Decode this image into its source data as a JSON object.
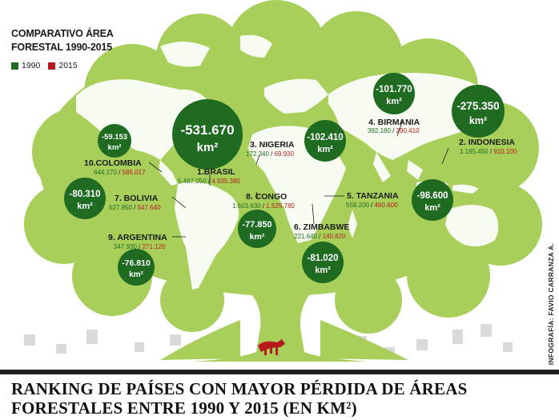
{
  "legend": {
    "title_line1": "COMPARATIVO ÁREA",
    "title_line2": "FORESTAL 1990-2015",
    "year_a": "1990",
    "year_b": "2015",
    "color_a": "#1e6b22",
    "color_b": "#b51b1b"
  },
  "colors": {
    "tree": "#a8cf5a",
    "tree_dark": "#8fbf45",
    "map": "#ffffff",
    "circle": "#1f6b22",
    "stumps": "#d8d8d8"
  },
  "countries": [
    {
      "rank_name": "1.BRASIL",
      "v1990": "5.467.050",
      "v2015": "4.935.380",
      "loss_line1": "-531.670",
      "loss_line2": "km²"
    },
    {
      "rank_name": "2. INDONESIA",
      "v1990": "1.185.450",
      "v2015": "910.100",
      "loss_line1": "-275.350",
      "loss_line2": "km²"
    },
    {
      "rank_name": "3. NIGERIA",
      "v1990": "172.340",
      "v2015": "69.930",
      "loss_line1": "-102.410",
      "loss_line2": "km²"
    },
    {
      "rank_name": "4. BIRMANIA",
      "v1990": "392.180",
      "v2015": "290.410",
      "loss_line1": "-101.770",
      "loss_line2": "km²"
    },
    {
      "rank_name": "5. TANZANIA",
      "v1990": "559.200",
      "v2015": "460.600",
      "loss_line1": "-98.600",
      "loss_line2": "km²"
    },
    {
      "rank_name": "6. ZIMBABWE",
      "v1990": "221.640",
      "v2015": "140.620",
      "loss_line1": "-81.020",
      "loss_line2": "km²"
    },
    {
      "rank_name": "7. BOLIVIA",
      "v1990": "627.950",
      "v2015": "547.640",
      "loss_line1": "-80.310",
      "loss_line2": "km²"
    },
    {
      "rank_name": "8. CONGO",
      "v1990": "1.603.630",
      "v2015": "1.525.780",
      "loss_line1": "-77.850",
      "loss_line2": "km²"
    },
    {
      "rank_name": "9. ARGENTINA",
      "v1990": "347.930",
      "v2015": "271.120",
      "loss_line1": "-76.810",
      "loss_line2": "km²"
    },
    {
      "rank_name": "10.COLOMBIA",
      "v1990": "644.170",
      "v2015": "585.017",
      "loss_line1": "-59.153",
      "loss_line2": "km²"
    }
  ],
  "credit": "INFOGRAFÍA: FAVIO CARRANZA A.",
  "headline_line1": "RANKING DE PAÍSES CON MAYOR PÉRDIDA DE ÁREAS",
  "headline_line2": "FORESTALES ENTRE 1990 Y 2015 (EN KM²)"
}
